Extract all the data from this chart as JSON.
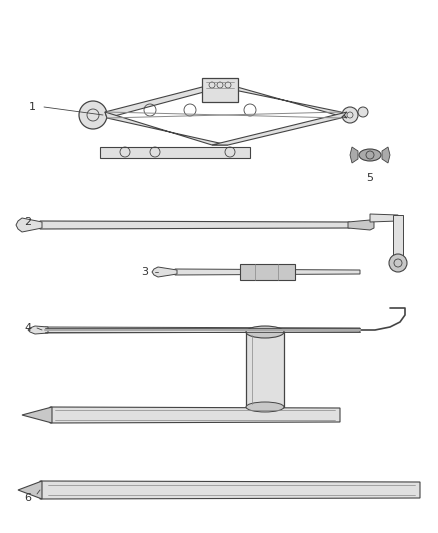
{
  "background_color": "#ffffff",
  "line_color": "#444444",
  "label_color": "#333333",
  "fig_width": 4.38,
  "fig_height": 5.33,
  "dpi": 100,
  "lc": "#444444",
  "gray1": "#c8c8c8",
  "gray2": "#e0e0e0",
  "gray3": "#aaaaaa",
  "gray_dark": "#888888"
}
